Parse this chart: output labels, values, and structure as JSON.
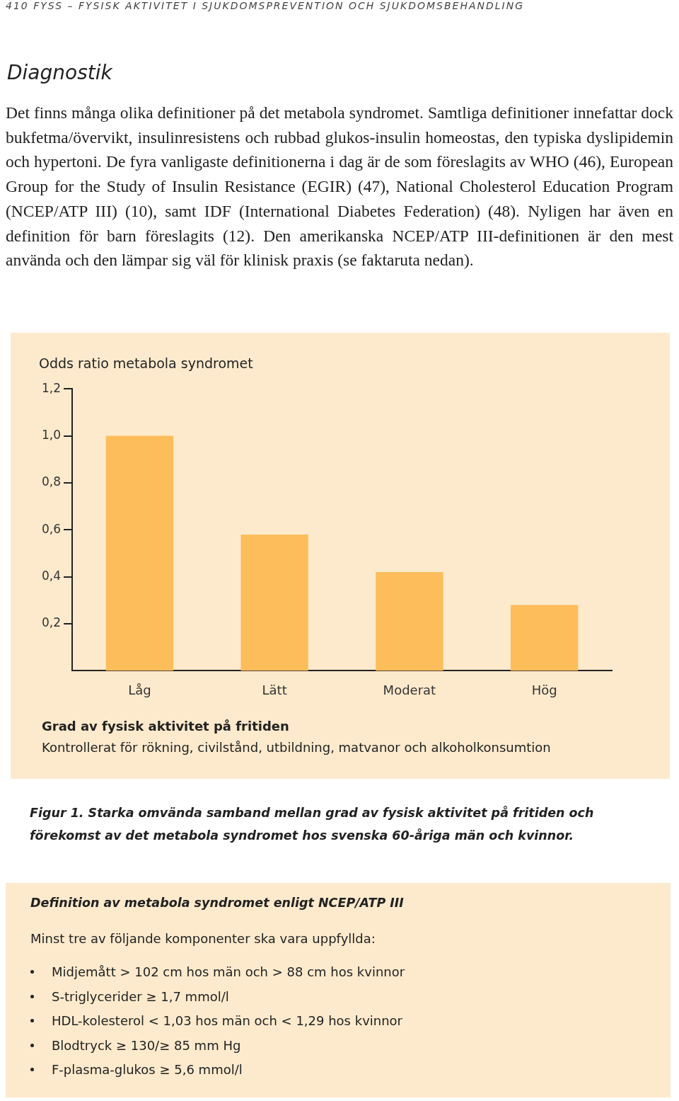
{
  "chart_data": {
    "type": "bar",
    "ylabel": "Odds ratio metabola syndromet",
    "xlabel": "Grad av fysisk aktivitet på fritiden",
    "categories": [
      "Låg",
      "Lätt",
      "Moderat",
      "Hög"
    ],
    "values": [
      1.0,
      0.58,
      0.42,
      0.28
    ],
    "color": "#fdbd5a",
    "ylim": [
      0,
      1.2
    ],
    "yticks": [
      {
        "value": 0.2,
        "label": "0,2"
      },
      {
        "value": 0.4,
        "label": "0,4"
      },
      {
        "value": 0.6,
        "label": "0,6"
      },
      {
        "value": 0.8,
        "label": "0,8"
      },
      {
        "value": 1.0,
        "label": "1,0"
      },
      {
        "value": 1.2,
        "label": "1,2"
      }
    ],
    "grid": false,
    "legend": false,
    "annotations": [
      "410 FYSS – FYSISK AKTIVITET I SJUKDOMSPREVENTION OCH SJUKDOMSBEHANDLING",
      "Diagnostik",
      "Det finns många olika definitioner på det metabola syndromet. Samtliga definitioner innefattar dock bukfetma/övervikt, insulinresistens och rubbad glukos-insulin homeostas, den typiska dyslipidemin och hypertoni. De fyra vanligaste definitionerna i dag är de som föreslagits av WHO (46), European Group for the Study of Insulin Resistance (EGIR) (47), National Cholesterol Education Program (NCEP/ATP III) (10), samt IDF (International Diabetes Federation) (48). Nyligen har även en definition för barn föreslagits (12). Den amerikanska NCEP/ATP III-definitionen är den mest använda och den lämpar sig väl för klinisk praxis (se faktaruta nedan).",
      "Kontrollerat för rökning, civilstånd, utbildning, matvanor och alkoholkonsumtion",
      "Figur 1. Starka omvända samband mellan grad av fysisk aktivitet på fritiden och förekomst av det metabola syndromet hos svenska 60-åriga män och kvinnor.",
      "Definition av metabola syndromet enligt NCEP/ATP III",
      "Minst tre av följande komponenter ska vara uppfyllda:",
      "Midjemått > 102 cm hos män och > 88 cm hos kvinnor",
      "S-triglycerider ≥ 1,7 mmol/l",
      "HDL-kolesterol < 1,03 hos män och < 1,29 hos kvinnor",
      "Blodtryck ≥ 130/≥ 85 mm Hg",
      "F-plasma-glukos ≥ 5,6 mmol/l"
    ]
  }
}
